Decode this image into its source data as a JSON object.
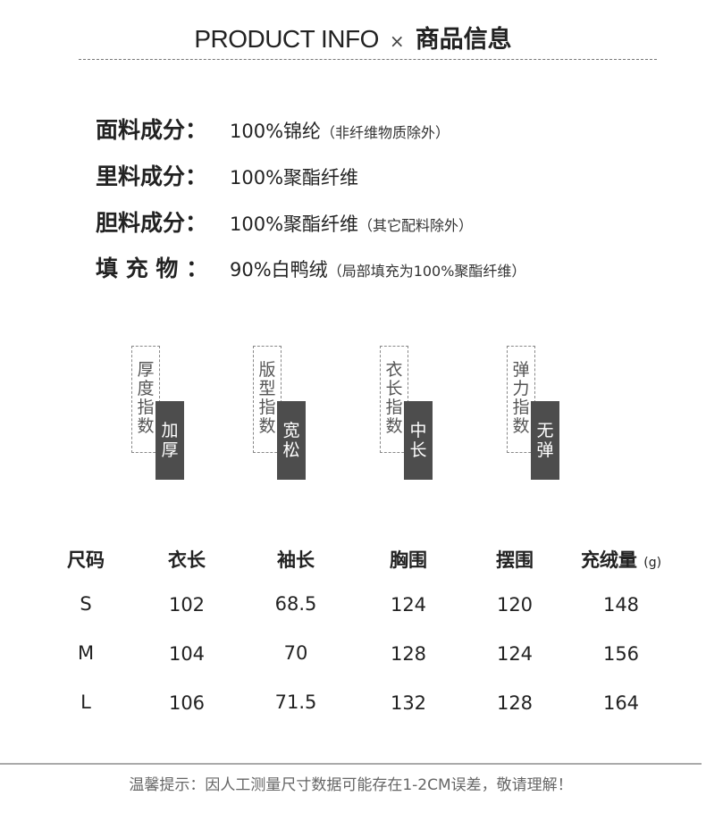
{
  "header": {
    "title_en": "PRODUCT INFO",
    "separator": "×",
    "title_cn": "商品信息"
  },
  "fabric": [
    {
      "label": "面料成分：",
      "value": "100%锦纶",
      "note": "（非纤维物质除外）"
    },
    {
      "label": "里料成分：",
      "value": "100%聚酯纤维",
      "note": ""
    },
    {
      "label": "胆料成分：",
      "value": "100%聚酯纤维",
      "note": "（其它配料除外）"
    },
    {
      "label": "填 充 物 ：",
      "value": "90%白鸭绒",
      "note": "（局部填充为100%聚酯纤维）"
    }
  ],
  "indices": [
    {
      "label": "厚度指数",
      "value": "加厚"
    },
    {
      "label": "版型指数",
      "value": "宽松"
    },
    {
      "label": "衣长指数",
      "value": "中长"
    },
    {
      "label": "弹力指数",
      "value": "无弹"
    }
  ],
  "size_table": {
    "headers": [
      "尺码",
      "衣长",
      "袖长",
      "胸围",
      "摆围",
      "充绒量"
    ],
    "unit": "(g)",
    "rows": [
      [
        "S",
        "102",
        "68.5",
        "124",
        "120",
        "148"
      ],
      [
        "M",
        "104",
        "70",
        "128",
        "124",
        "156"
      ],
      [
        "L",
        "106",
        "71.5",
        "132",
        "128",
        "164"
      ]
    ]
  },
  "footer": {
    "note": "温馨提示：因人工测量尺寸数据可能存在1-2CM误差，敬请理解！"
  }
}
